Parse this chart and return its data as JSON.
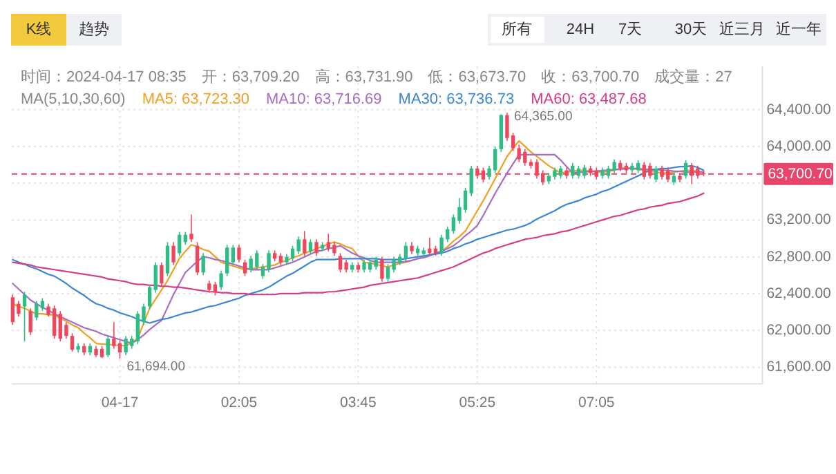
{
  "chart_data": {
    "type": "candlestick",
    "categories": [
      null,
      null,
      null,
      null,
      null,
      null,
      null,
      null,
      null,
      null,
      null,
      null,
      null,
      null,
      null,
      null,
      null,
      null,
      "04-17",
      null,
      null,
      null,
      null,
      null,
      null,
      null,
      null,
      null,
      null,
      null,
      null,
      null,
      null,
      null,
      null,
      null,
      null,
      null,
      "02:05",
      null,
      null,
      null,
      null,
      null,
      null,
      null,
      null,
      null,
      null,
      null,
      null,
      null,
      null,
      null,
      null,
      null,
      null,
      null,
      "03:45",
      null,
      null,
      null,
      null,
      null,
      null,
      null,
      null,
      null,
      null,
      null,
      null,
      null,
      null,
      null,
      null,
      null,
      null,
      null,
      "05:25",
      null,
      null,
      null,
      null,
      null,
      null,
      null,
      null,
      null,
      null,
      null,
      null,
      null,
      null,
      null,
      null,
      null,
      null,
      null,
      "07:05",
      null,
      null,
      null,
      null,
      null,
      null,
      null,
      null,
      null,
      null,
      null,
      null,
      null,
      null,
      null,
      null,
      null,
      null
    ],
    "ohlc": [
      [
        62360,
        62390,
        62060,
        62090
      ],
      [
        62290,
        62320,
        62150,
        62180
      ],
      [
        62260,
        62420,
        61880,
        62390
      ],
      [
        62210,
        62240,
        61950,
        61980
      ],
      [
        62140,
        62320,
        62110,
        62290
      ],
      [
        62240,
        62350,
        62210,
        62320
      ],
      [
        62260,
        62290,
        62150,
        62170
      ],
      [
        62240,
        62270,
        61910,
        61940
      ],
      [
        62180,
        62210,
        61880,
        61910
      ],
      [
        62060,
        62090,
        61910,
        61940
      ],
      [
        61940,
        61970,
        61770,
        61790
      ],
      [
        61790,
        61860,
        61760,
        61830
      ],
      [
        61830,
        61860,
        61730,
        61760
      ],
      [
        61760,
        61860,
        61730,
        61830
      ],
      [
        61800,
        61830,
        61710,
        61730
      ],
      [
        61800,
        61830,
        61700,
        61710
      ],
      [
        61730,
        61940,
        61710,
        61910
      ],
      [
        61910,
        62090,
        61800,
        61830
      ],
      [
        61860,
        61890,
        61694,
        61760
      ],
      [
        61760,
        61940,
        61730,
        61910
      ],
      [
        61830,
        61940,
        61800,
        61910
      ],
      [
        61880,
        62210,
        61850,
        62180
      ],
      [
        62090,
        62290,
        62060,
        62260
      ],
      [
        62260,
        62500,
        62230,
        62470
      ],
      [
        62440,
        62740,
        62410,
        62710
      ],
      [
        62710,
        62740,
        62480,
        62510
      ],
      [
        62620,
        62960,
        62590,
        62920
      ],
      [
        62920,
        62960,
        62710,
        62740
      ],
      [
        62840,
        63070,
        62810,
        63040
      ],
      [
        62960,
        63070,
        62930,
        63040
      ],
      [
        63050,
        63260,
        62960,
        62990
      ],
      [
        62920,
        62960,
        62600,
        62630
      ],
      [
        62630,
        62840,
        62600,
        62810
      ],
      [
        62510,
        62540,
        62410,
        62440
      ],
      [
        62500,
        62530,
        62380,
        62410
      ],
      [
        62470,
        62650,
        62440,
        62620
      ],
      [
        62620,
        62930,
        62590,
        62900
      ],
      [
        62740,
        62930,
        62710,
        62900
      ],
      [
        62900,
        62930,
        62740,
        62770
      ],
      [
        62740,
        62770,
        62590,
        62620
      ],
      [
        62660,
        62810,
        62630,
        62780
      ],
      [
        62690,
        62870,
        62660,
        62840
      ],
      [
        62590,
        62720,
        62560,
        62690
      ],
      [
        62660,
        62870,
        62630,
        62840
      ],
      [
        62840,
        62870,
        62750,
        62780
      ],
      [
        62810,
        62840,
        62710,
        62740
      ],
      [
        62740,
        62830,
        62710,
        62800
      ],
      [
        62780,
        62920,
        62750,
        62890
      ],
      [
        62860,
        63020,
        62830,
        62990
      ],
      [
        62990,
        63080,
        62810,
        62840
      ],
      [
        62860,
        62990,
        62830,
        62960
      ],
      [
        62960,
        62990,
        62810,
        62840
      ],
      [
        62890,
        62960,
        62860,
        62930
      ],
      [
        62960,
        63050,
        62860,
        62890
      ],
      [
        62930,
        62960,
        62810,
        62840
      ],
      [
        62810,
        62840,
        62630,
        62660
      ],
      [
        62740,
        62770,
        62630,
        62660
      ],
      [
        62660,
        62740,
        62630,
        62710
      ],
      [
        62710,
        62740,
        62630,
        62660
      ],
      [
        62660,
        62770,
        62630,
        62740
      ],
      [
        62660,
        62770,
        62630,
        62740
      ],
      [
        62690,
        62800,
        62660,
        62770
      ],
      [
        62770,
        62800,
        62530,
        62560
      ],
      [
        62560,
        62720,
        62530,
        62690
      ],
      [
        62660,
        62800,
        62630,
        62770
      ],
      [
        62740,
        62830,
        62710,
        62800
      ],
      [
        62780,
        62960,
        62750,
        62920
      ],
      [
        62920,
        62960,
        62830,
        62860
      ],
      [
        62840,
        62920,
        62810,
        62890
      ],
      [
        62830,
        62900,
        62800,
        62870
      ],
      [
        62890,
        63010,
        62810,
        62840
      ],
      [
        62890,
        62920,
        62810,
        62840
      ],
      [
        62840,
        63040,
        62810,
        63010
      ],
      [
        62990,
        63130,
        62960,
        63100
      ],
      [
        63080,
        63260,
        63050,
        63230
      ],
      [
        63190,
        63440,
        63160,
        63340
      ],
      [
        63310,
        63550,
        63280,
        63520
      ],
      [
        63490,
        63790,
        63460,
        63760
      ],
      [
        63760,
        63790,
        63650,
        63680
      ],
      [
        63740,
        63770,
        63610,
        63640
      ],
      [
        63670,
        63790,
        63640,
        63760
      ],
      [
        63740,
        64000,
        63710,
        63970
      ],
      [
        63970,
        64350,
        63940,
        64340
      ],
      [
        64340,
        64365,
        64060,
        64090
      ],
      [
        64120,
        64150,
        63950,
        63980
      ],
      [
        63980,
        64020,
        63830,
        63860
      ],
      [
        63940,
        63970,
        63790,
        63820
      ],
      [
        63830,
        63860,
        63760,
        63790
      ],
      [
        63830,
        63860,
        63650,
        63680
      ],
      [
        63710,
        63740,
        63580,
        63610
      ],
      [
        63620,
        63710,
        63590,
        63680
      ],
      [
        63670,
        63770,
        63640,
        63740
      ],
      [
        63680,
        63790,
        63650,
        63760
      ],
      [
        63740,
        63770,
        63650,
        63680
      ],
      [
        63680,
        63820,
        63650,
        63790
      ],
      [
        63680,
        63790,
        63650,
        63760
      ],
      [
        63680,
        63800,
        63650,
        63770
      ],
      [
        63760,
        63790,
        63680,
        63710
      ],
      [
        63740,
        63770,
        63640,
        63670
      ],
      [
        63680,
        63770,
        63650,
        63740
      ],
      [
        63680,
        63790,
        63650,
        63760
      ],
      [
        63740,
        63860,
        63710,
        63830
      ],
      [
        63820,
        63850,
        63730,
        63760
      ],
      [
        63790,
        63820,
        63710,
        63740
      ],
      [
        63740,
        63820,
        63710,
        63790
      ],
      [
        63740,
        63850,
        63710,
        63820
      ],
      [
        63800,
        63830,
        63640,
        63670
      ],
      [
        63790,
        63820,
        63650,
        63680
      ],
      [
        63640,
        63790,
        63610,
        63760
      ],
      [
        63760,
        63790,
        63640,
        63670
      ],
      [
        63740,
        63770,
        63610,
        63640
      ],
      [
        63610,
        63710,
        63580,
        63680
      ],
      [
        63680,
        63710,
        63610,
        63640
      ],
      [
        63680,
        63850,
        63650,
        63820
      ],
      [
        63790,
        63820,
        63590,
        63680
      ],
      [
        63760,
        63790,
        63650,
        63680
      ],
      [
        63709.2,
        63731.9,
        63673.7,
        63700.7
      ]
    ],
    "series": [
      {
        "name": "MA5: 63,723.30",
        "type": "line",
        "color": "#f0a020",
        "values": [
          62290,
          62260,
          62240,
          62210,
          62180,
          62180,
          62170,
          62170,
          62130,
          62100,
          62060,
          62030,
          61970,
          61920,
          61860,
          61850,
          61850,
          61840,
          61840,
          61830,
          61870,
          61910,
          62080,
          62240,
          62340,
          62440,
          62540,
          62660,
          62780,
          62860,
          62930,
          62910,
          62880,
          62860,
          62800,
          62740,
          62720,
          62700,
          62680,
          62660,
          62670,
          62680,
          62690,
          62700,
          62710,
          62740,
          62760,
          62790,
          62810,
          62840,
          62860,
          62890,
          62910,
          62940,
          62960,
          62940,
          62910,
          62890,
          62810,
          62740,
          62730,
          62720,
          62700,
          62690,
          62710,
          62730,
          62740,
          62760,
          62780,
          62800,
          62820,
          62840,
          62860,
          62910,
          62970,
          63020,
          63080,
          63190,
          63300,
          63410,
          63530,
          63650,
          63770,
          63890,
          63980,
          64060,
          64000,
          63940,
          63890,
          63840,
          63790,
          63750,
          63710,
          63720,
          63730,
          63740,
          63740,
          63730,
          63720,
          63720,
          63730,
          63740,
          63760,
          63770,
          63760,
          63750,
          63740,
          63730,
          63720,
          63710,
          63710,
          63720,
          63730,
          63740,
          63740,
          63730,
          63720
        ]
      },
      {
        "name": "MA10: 63,716.69",
        "type": "line",
        "color": "#a66cc8",
        "values": [
          62510,
          62450,
          62390,
          62330,
          62290,
          62250,
          62220,
          62180,
          62150,
          62120,
          62090,
          62060,
          62030,
          62010,
          61990,
          61960,
          61940,
          61920,
          61900,
          61880,
          61860,
          61900,
          61950,
          62010,
          62060,
          62110,
          62250,
          62390,
          62510,
          62630,
          62690,
          62750,
          62800,
          62790,
          62770,
          62760,
          62740,
          62720,
          62700,
          62680,
          62660,
          62660,
          62660,
          62660,
          62680,
          62700,
          62720,
          62740,
          62770,
          62800,
          62830,
          62860,
          62870,
          62890,
          62900,
          62920,
          62880,
          62840,
          62810,
          62790,
          62760,
          62740,
          62740,
          62740,
          62740,
          62740,
          62750,
          62760,
          62780,
          62790,
          62810,
          62840,
          62860,
          62890,
          62920,
          62970,
          63030,
          63080,
          63140,
          63250,
          63370,
          63490,
          63600,
          63710,
          63810,
          63910,
          63910,
          63910,
          63910,
          63910,
          63910,
          63910,
          63850,
          63780,
          63710,
          63720,
          63720,
          63730,
          63730,
          63740,
          63740,
          63750,
          63750,
          63760,
          63760,
          63760,
          63750,
          63750,
          63750,
          63740,
          63740,
          63730,
          63730,
          63720,
          63720,
          63720,
          63720
        ]
      },
      {
        "name": "MA30: 63,736.73",
        "type": "line",
        "color": "#3a86d8",
        "values": [
          62770,
          62740,
          62720,
          62690,
          62670,
          62640,
          62610,
          62590,
          62550,
          62510,
          62460,
          62420,
          62380,
          62330,
          62290,
          62270,
          62240,
          62220,
          62190,
          62170,
          62150,
          62120,
          62100,
          62080,
          62100,
          62120,
          62130,
          62150,
          62170,
          62190,
          62200,
          62220,
          62240,
          62260,
          62270,
          62290,
          62310,
          62330,
          62350,
          62380,
          62400,
          62420,
          62440,
          62470,
          62510,
          62550,
          62590,
          62620,
          62660,
          62700,
          62740,
          62770,
          62770,
          62770,
          62770,
          62780,
          62780,
          62780,
          62780,
          62780,
          62780,
          62780,
          62770,
          62770,
          62770,
          62770,
          62780,
          62790,
          62800,
          62810,
          62820,
          62830,
          62840,
          62860,
          62890,
          62910,
          62940,
          62960,
          62990,
          63010,
          63030,
          63050,
          63070,
          63090,
          63100,
          63120,
          63140,
          63170,
          63210,
          63240,
          63270,
          63300,
          63340,
          63370,
          63390,
          63410,
          63440,
          63460,
          63480,
          63510,
          63530,
          63560,
          63590,
          63620,
          63650,
          63680,
          63710,
          63740,
          63750,
          63760,
          63760,
          63770,
          63780,
          63780,
          63790,
          63770,
          63740
        ]
      },
      {
        "name": "MA60: 63,487.68",
        "type": "line",
        "color": "#d63d86",
        "values": [
          62740,
          62730,
          62720,
          62710,
          62690,
          62680,
          62670,
          62660,
          62650,
          62640,
          62630,
          62620,
          62610,
          62600,
          62590,
          62580,
          62560,
          62550,
          62540,
          62530,
          62510,
          62500,
          62500,
          62490,
          62490,
          62480,
          62480,
          62470,
          62470,
          62460,
          62450,
          62440,
          62430,
          62420,
          62420,
          62410,
          62410,
          62400,
          62400,
          62400,
          62390,
          62390,
          62390,
          62390,
          62390,
          62400,
          62400,
          62400,
          62400,
          62410,
          62410,
          62410,
          62410,
          62420,
          62420,
          62430,
          62440,
          62450,
          62460,
          62470,
          62490,
          62500,
          62510,
          62520,
          62530,
          62540,
          62550,
          62560,
          62570,
          62590,
          62610,
          62630,
          62650,
          62670,
          62690,
          62720,
          62750,
          62780,
          62810,
          62840,
          62860,
          62890,
          62910,
          62930,
          62950,
          62970,
          62990,
          63000,
          63010,
          63030,
          63040,
          63050,
          63070,
          63080,
          63100,
          63120,
          63140,
          63160,
          63180,
          63200,
          63220,
          63240,
          63250,
          63270,
          63290,
          63310,
          63320,
          63340,
          63350,
          63360,
          63380,
          63390,
          63400,
          63420,
          63440,
          63460,
          63490
        ]
      }
    ],
    "ylim": [
      61420,
      64870
    ],
    "yticks": [
      {
        "value": 61600,
        "label": "61,600.00"
      },
      {
        "value": 62000,
        "label": "62,000.00"
      },
      {
        "value": 62400,
        "label": "62,400.00"
      },
      {
        "value": 62800,
        "label": "62,800.00"
      },
      {
        "value": 63200,
        "label": "63,200.00"
      },
      {
        "value": 63600,
        "label": null
      },
      {
        "value": 64000,
        "label": "64,000.00"
      },
      {
        "value": 64400,
        "label": "64,400.00"
      }
    ],
    "grid": true,
    "legend": "top",
    "legend_title": "MA(5,10,30,60)",
    "ref_lines": [
      {
        "axis": "y",
        "value": 63700.7,
        "label": "63,700.70",
        "color": "#e8456a",
        "line_style": "dashed"
      }
    ],
    "annotations": [
      "K线",
      "趋势",
      "所有",
      "24H",
      "7天",
      "30天",
      "近三月",
      "近一年",
      "时间：2024-04-17 08:35",
      "开：63,709.20",
      "高：63,731.90",
      "低：63,673.70",
      "收：63,700.70",
      "成交量：27",
      "64,365.00",
      "61,694.00"
    ]
  }
}
